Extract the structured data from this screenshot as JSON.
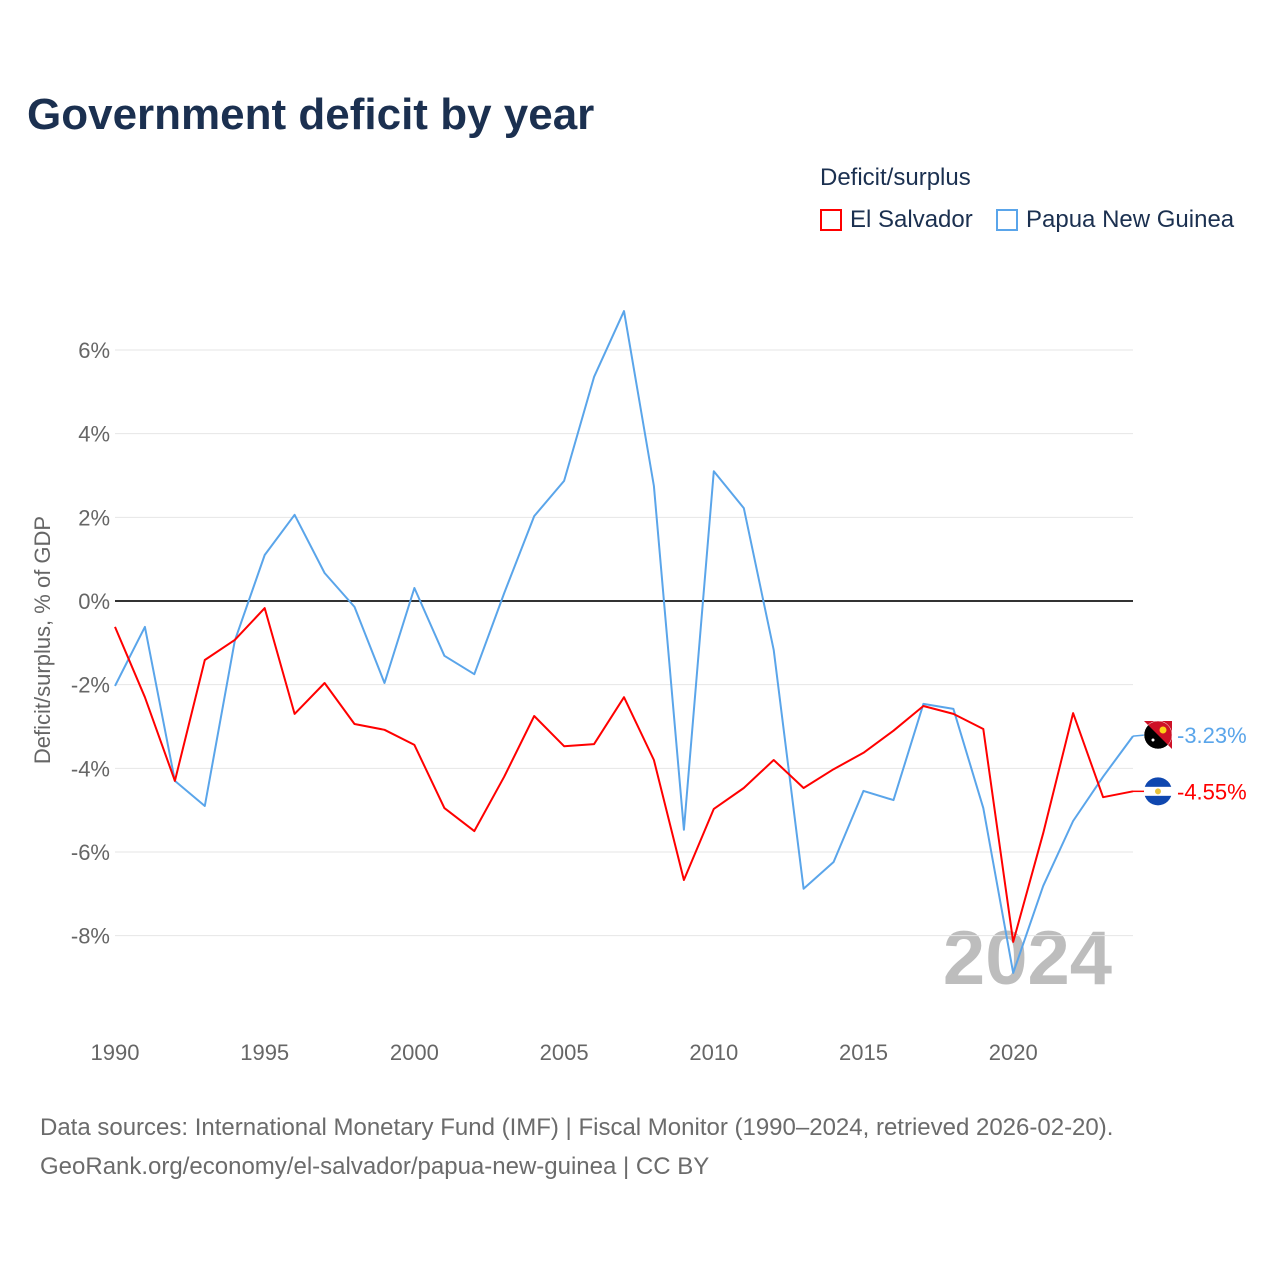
{
  "title": "Government deficit by year",
  "legend": {
    "title": "Deficit/surplus",
    "items": [
      {
        "label": "El Salvador",
        "color": "#ff0000"
      },
      {
        "label": "Papua New Guinea",
        "color": "#5aa5ea"
      }
    ]
  },
  "source_lines": [
    "Data sources: International Monetary Fund (IMF) | Fiscal Monitor (1990–2024, retrieved 2026-02-20).",
    "GeoRank.org/economy/el-salvador/papua-new-guinea | CC BY"
  ],
  "chart_data": {
    "type": "line",
    "title": "Government deficit by year",
    "xlabel": "",
    "ylabel": "Deficit/surplus, % of GDP",
    "xlim": [
      1990,
      2024
    ],
    "ylim": [
      -10,
      7
    ],
    "x_ticks": [
      1990,
      1995,
      2000,
      2005,
      2010,
      2015,
      2020
    ],
    "y_ticks": [
      6,
      4,
      2,
      0,
      -2,
      -4,
      -6,
      -8
    ],
    "y_tick_labels": [
      "6%",
      "4%",
      "2%",
      "0%",
      "-2%",
      "-4%",
      "-6%",
      "-8%"
    ],
    "grid": true,
    "legend_position": "top-right",
    "watermark": "2024",
    "x": [
      1990,
      1991,
      1992,
      1993,
      1994,
      1995,
      1996,
      1997,
      1998,
      1999,
      2000,
      2001,
      2002,
      2003,
      2004,
      2005,
      2006,
      2007,
      2008,
      2009,
      2010,
      2011,
      2012,
      2013,
      2014,
      2015,
      2016,
      2017,
      2018,
      2019,
      2020,
      2021,
      2022,
      2023,
      2024
    ],
    "series": [
      {
        "name": "El Salvador",
        "color": "#ff0000",
        "end_label": "-4.55%",
        "values": [
          -0.62,
          -2.3,
          -4.3,
          -1.41,
          -0.93,
          -0.17,
          -2.7,
          -1.96,
          -2.94,
          -3.08,
          -3.44,
          -4.95,
          -5.5,
          -4.2,
          -2.75,
          -3.47,
          -3.42,
          -2.3,
          -3.8,
          -6.67,
          -4.97,
          -4.47,
          -3.8,
          -4.47,
          -4.02,
          -3.63,
          -3.1,
          -2.51,
          -2.7,
          -3.06,
          -8.15,
          -5.55,
          -2.68,
          -4.69,
          -4.55
        ]
      },
      {
        "name": "Papua New Guinea",
        "color": "#5aa5ea",
        "end_label": "-3.23%",
        "values": [
          -2.03,
          -0.62,
          -4.3,
          -4.9,
          -0.95,
          1.1,
          2.06,
          0.67,
          -0.14,
          -1.96,
          0.31,
          -1.31,
          -1.75,
          0.19,
          2.03,
          2.87,
          5.36,
          6.93,
          2.75,
          -5.47,
          3.1,
          2.22,
          -1.17,
          -6.88,
          -6.24,
          -4.54,
          -4.76,
          -2.46,
          -2.58,
          -4.95,
          -8.89,
          -6.81,
          -5.26,
          -4.2,
          -3.23
        ]
      }
    ]
  }
}
